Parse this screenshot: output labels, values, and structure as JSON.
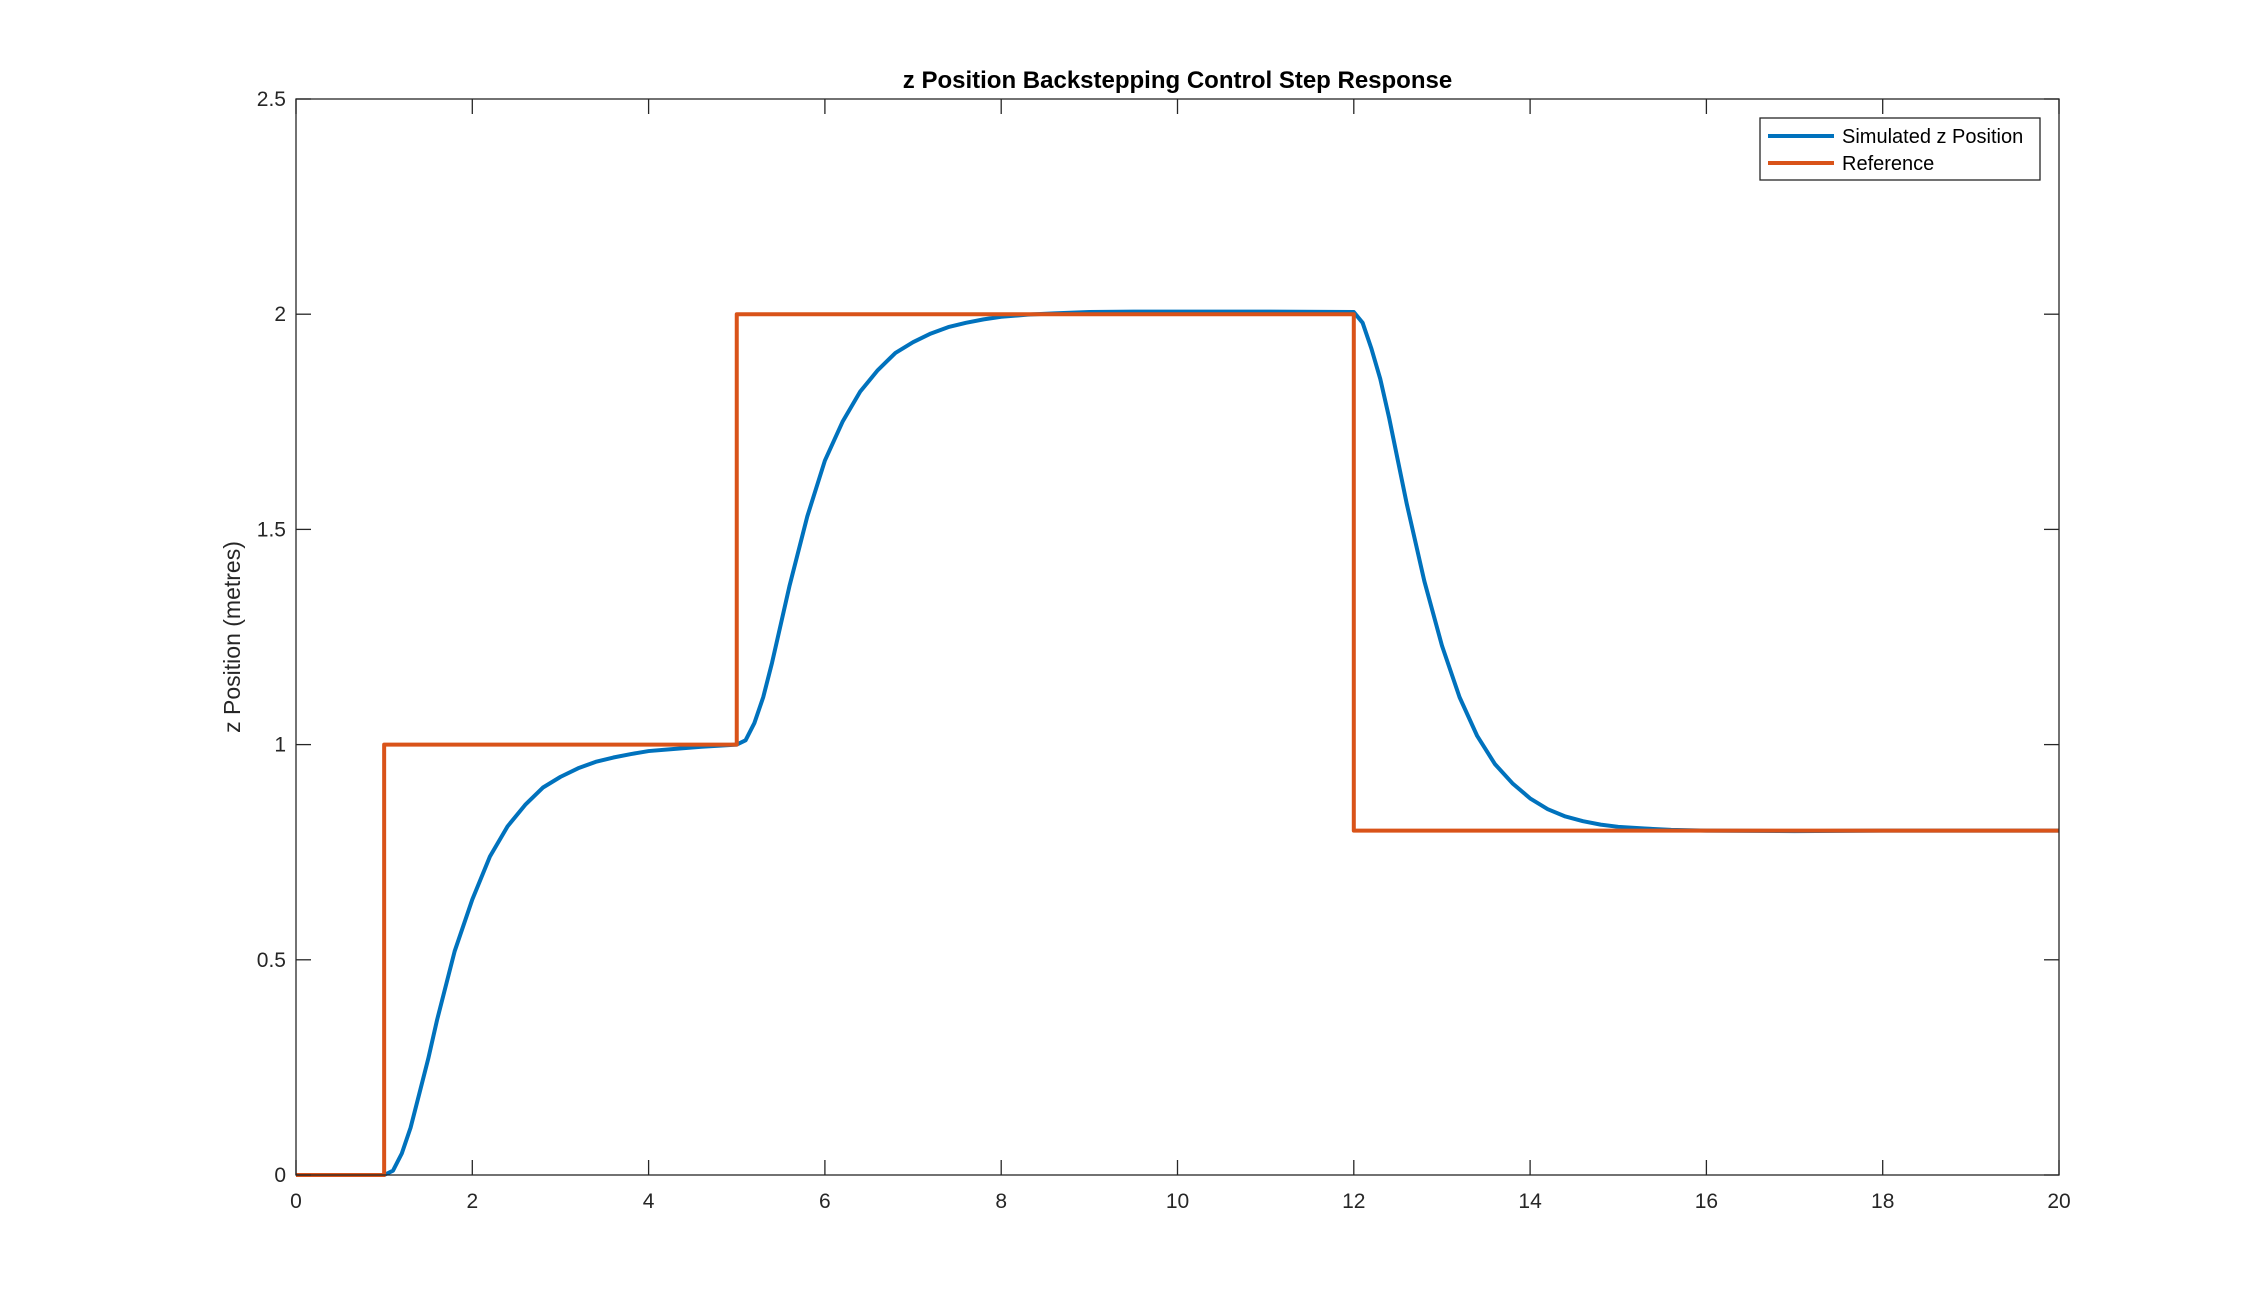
{
  "chart_data": {
    "type": "line",
    "title": "z Position Backstepping Control Step Response",
    "xlabel": "",
    "ylabel": "z Position (metres)",
    "xlim": [
      0,
      20
    ],
    "ylim": [
      0,
      2.5
    ],
    "xticks": [
      "0",
      "2",
      "4",
      "6",
      "8",
      "10",
      "12",
      "14",
      "16",
      "18",
      "20"
    ],
    "yticks": [
      "0",
      "0.5",
      "1",
      "1.5",
      "2",
      "2.5"
    ],
    "grid": false,
    "legend_position": "top-right",
    "series": [
      {
        "name": "Simulated z Position",
        "color": "#0072BD",
        "x": [
          0,
          1,
          1.1,
          1.2,
          1.3,
          1.4,
          1.5,
          1.6,
          1.8,
          2.0,
          2.2,
          2.4,
          2.6,
          2.8,
          3.0,
          3.2,
          3.4,
          3.6,
          3.8,
          4.0,
          4.3,
          4.6,
          5.0,
          5.1,
          5.2,
          5.3,
          5.4,
          5.5,
          5.6,
          5.8,
          6.0,
          6.2,
          6.4,
          6.6,
          6.8,
          7.0,
          7.2,
          7.4,
          7.6,
          7.8,
          8.0,
          8.3,
          8.6,
          9.0,
          9.5,
          10.0,
          11.0,
          12.0,
          12.1,
          12.2,
          12.3,
          12.4,
          12.5,
          12.6,
          12.8,
          13.0,
          13.2,
          13.4,
          13.6,
          13.8,
          14.0,
          14.2,
          14.4,
          14.6,
          14.8,
          15.0,
          15.3,
          15.6,
          16.0,
          17.0,
          18.0,
          19.0,
          20.0
        ],
        "y": [
          0,
          0,
          0.01,
          0.05,
          0.11,
          0.19,
          0.27,
          0.36,
          0.52,
          0.64,
          0.74,
          0.81,
          0.86,
          0.9,
          0.925,
          0.945,
          0.96,
          0.97,
          0.978,
          0.985,
          0.99,
          0.995,
          1.0,
          1.01,
          1.05,
          1.11,
          1.19,
          1.28,
          1.37,
          1.53,
          1.66,
          1.75,
          1.82,
          1.87,
          1.91,
          1.935,
          1.955,
          1.97,
          1.98,
          1.988,
          1.994,
          1.999,
          2.002,
          2.005,
          2.006,
          2.006,
          2.006,
          2.005,
          1.98,
          1.92,
          1.85,
          1.76,
          1.66,
          1.56,
          1.38,
          1.23,
          1.11,
          1.02,
          0.955,
          0.91,
          0.875,
          0.85,
          0.833,
          0.822,
          0.814,
          0.809,
          0.805,
          0.802,
          0.8,
          0.799,
          0.8,
          0.8,
          0.8
        ]
      },
      {
        "name": "Reference",
        "color": "#D95319",
        "x": [
          0,
          1,
          1,
          5,
          5,
          12,
          12,
          20
        ],
        "y": [
          0,
          0,
          1,
          1,
          2,
          2,
          0.8,
          0.8
        ]
      }
    ]
  }
}
